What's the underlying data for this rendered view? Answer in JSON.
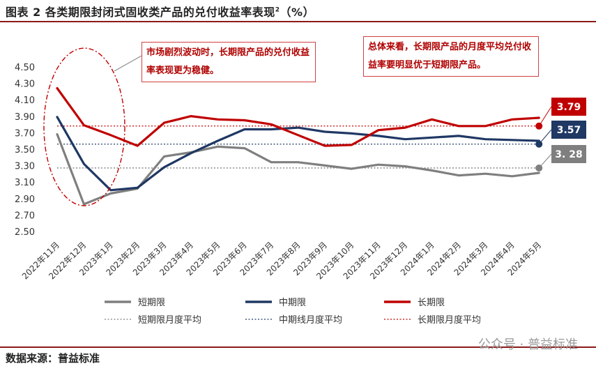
{
  "header": {
    "title": "图表 2 各类期限封闭式固收类产品的兑付收益率表现",
    "title_sup": "2",
    "title_suffix": "（%）"
  },
  "footer": {
    "source": "数据来源：普益标准",
    "watermark": "公众号 · 普益标准"
  },
  "annotations": {
    "left": "市场剧烈波动时，长期限产品的兑付收益率表现更为稳健。",
    "right": "总体来看，长期限产品的月度平均兑付收益率要明显优于短期限产品。"
  },
  "chart_data": {
    "type": "line",
    "title": "",
    "xlabel": "",
    "ylabel": "",
    "ylim": [
      2.5,
      4.5
    ],
    "yticks": [
      "2.50",
      "2.70",
      "2.90",
      "3.10",
      "3.30",
      "3.50",
      "3.70",
      "3.90",
      "4.10",
      "4.30",
      "4.50"
    ],
    "categories": [
      "2022年11月",
      "2022年12月",
      "2023年1月",
      "2023年2月",
      "2023年3月",
      "2023年4月",
      "2023年5月",
      "2023年6月",
      "2023年7月",
      "2023年8月",
      "2023年9月",
      "2023年10月",
      "2023年11月",
      "2023年12月",
      "2024年1月",
      "2024年2月",
      "2024年3月",
      "2024年4月",
      "2024年5月"
    ],
    "series": [
      {
        "name": "短期限",
        "color": "#7f7f7f",
        "values": [
          3.69,
          2.84,
          2.97,
          3.03,
          3.42,
          3.47,
          3.54,
          3.52,
          3.35,
          3.35,
          3.31,
          3.27,
          3.32,
          3.3,
          3.25,
          3.19,
          3.21,
          3.18,
          3.22
        ]
      },
      {
        "name": "中期限",
        "color": "#1f3864",
        "values": [
          3.9,
          3.33,
          3.01,
          3.04,
          3.29,
          3.46,
          3.61,
          3.75,
          3.75,
          3.77,
          3.72,
          3.7,
          3.67,
          3.63,
          3.65,
          3.67,
          3.63,
          3.62,
          3.61
        ]
      },
      {
        "name": "长期限",
        "color": "#c00000",
        "values": [
          4.25,
          3.8,
          3.68,
          3.55,
          3.83,
          3.91,
          3.87,
          3.86,
          3.81,
          3.68,
          3.55,
          3.56,
          3.74,
          3.77,
          3.87,
          3.79,
          3.79,
          3.87,
          3.89
        ]
      }
    ],
    "averages": [
      {
        "name": "短期限月度平均",
        "value": 3.28,
        "label": "3. 28",
        "color": "#7f7f7f"
      },
      {
        "name": "中期线月度平均",
        "value": 3.57,
        "label": "3.57",
        "color": "#1f3864"
      },
      {
        "name": "长期限月度平均",
        "value": 3.79,
        "label": "3.79",
        "color": "#c00000"
      }
    ],
    "legend": {
      "placement": "bottom",
      "items": [
        "短期限",
        "中期限",
        "长期限",
        "短期限月度平均",
        "中期线月度平均",
        "长期限月度平均"
      ]
    }
  }
}
